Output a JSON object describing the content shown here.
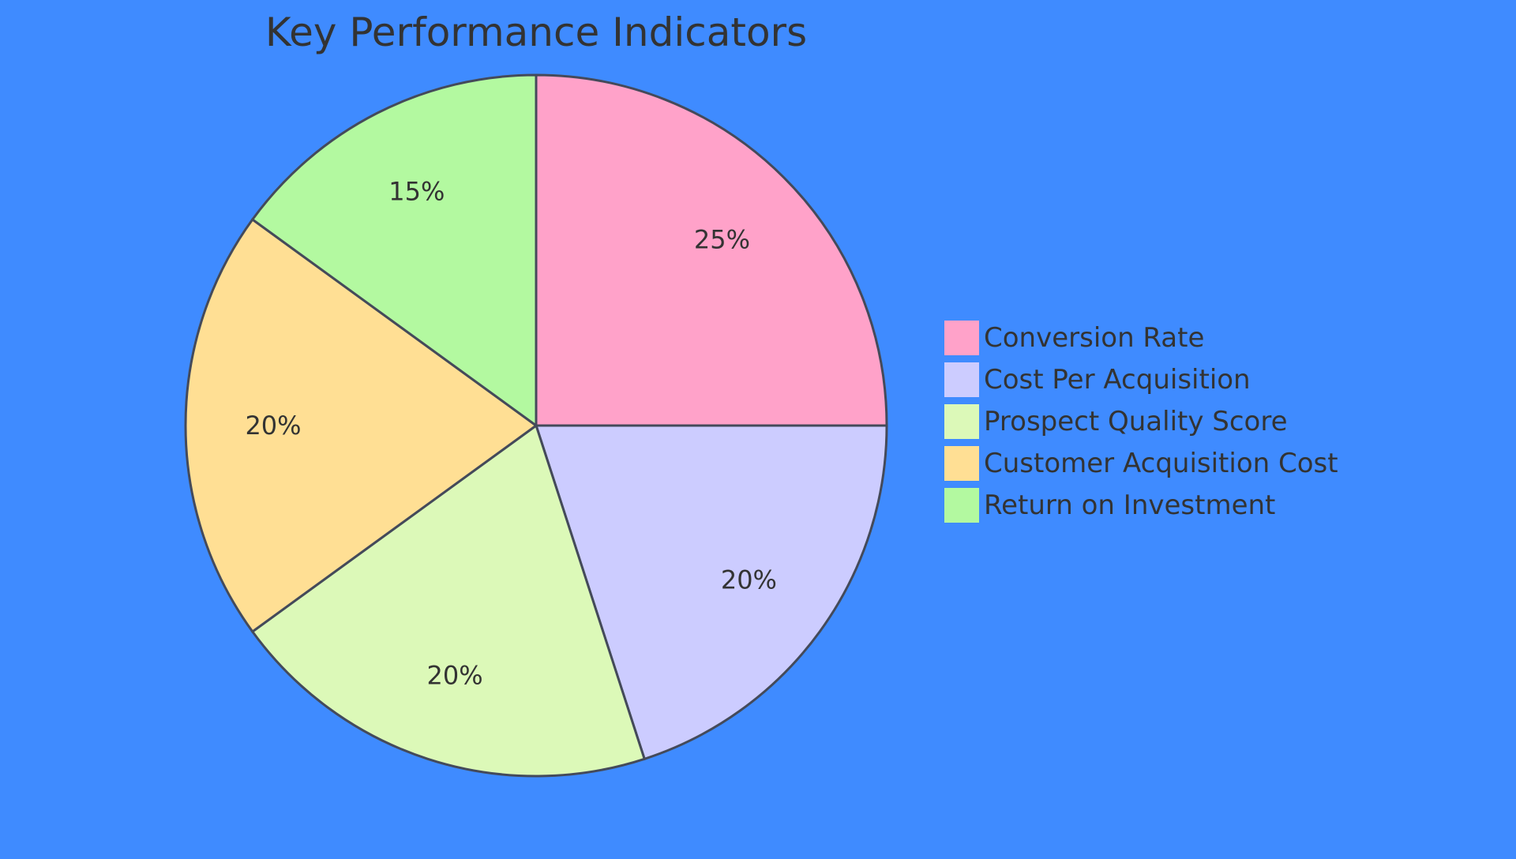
{
  "chart_data": {
    "type": "pie",
    "title": "Key Performance Indicators",
    "background": "#3f8bff",
    "stroke": "#444a5a",
    "text_color": "#333333",
    "slices": [
      {
        "label": "Conversion Rate",
        "value": 25,
        "display": "25%",
        "color": "#ffa2c9"
      },
      {
        "label": "Cost Per Acquisition",
        "value": 20,
        "display": "20%",
        "color": "#ccccff"
      },
      {
        "label": "Prospect Quality Score",
        "value": 20,
        "display": "20%",
        "color": "#dcf9b8"
      },
      {
        "label": "Customer Acquisition Cost",
        "value": 20,
        "display": "20%",
        "color": "#ffdf94"
      },
      {
        "label": "Return on Investment",
        "value": 15,
        "display": "15%",
        "color": "#b3f9a0"
      }
    ],
    "legend_position": "right"
  }
}
